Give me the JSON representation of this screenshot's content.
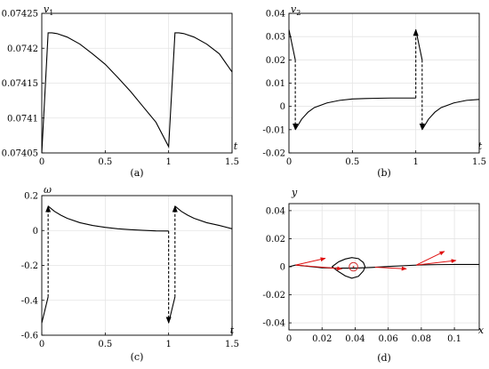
{
  "chart_data": [
    {
      "id": "a",
      "type": "line",
      "caption": "(a)",
      "xlabel": "t",
      "ylabel": "v",
      "ylabel_sub": "1",
      "xlim": [
        0,
        1.5
      ],
      "ylim": [
        0.07405,
        0.07425
      ],
      "xticks": [
        0,
        0.5,
        1,
        1.5
      ],
      "xtick_labels": [
        "0",
        "0.5",
        "1",
        "1.5"
      ],
      "yticks": [
        0.07405,
        0.0741,
        0.07415,
        0.0742,
        0.07425
      ],
      "ytick_labels": [
        "0.07405",
        "0.0741",
        "0.07415",
        "0.0742",
        "0.07425"
      ],
      "grid": true,
      "series": [
        {
          "x": [
            0,
            0.05,
            0.08,
            0.12,
            0.2,
            0.3,
            0.4,
            0.5,
            0.6,
            0.7,
            0.8,
            0.9,
            1.0,
            1.05,
            1.08,
            1.12,
            1.2,
            1.3,
            1.4,
            1.5
          ],
          "y": [
            0.07405,
            0.074222,
            0.074222,
            0.074221,
            0.074216,
            0.074206,
            0.074192,
            0.074177,
            0.074158,
            0.074138,
            0.074116,
            0.074094,
            0.074059,
            0.074222,
            0.074222,
            0.074221,
            0.074216,
            0.074206,
            0.074192,
            0.074166
          ],
          "style": "solid"
        }
      ]
    },
    {
      "id": "b",
      "type": "line",
      "caption": "(b)",
      "xlabel": "t",
      "ylabel": "v",
      "ylabel_sub": "2",
      "xlim": [
        0,
        1.5
      ],
      "ylim": [
        -0.02,
        0.04
      ],
      "xticks": [
        0,
        0.5,
        1,
        1.5
      ],
      "xtick_labels": [
        "0",
        "0.5",
        "1",
        "1.5"
      ],
      "yticks": [
        -0.02,
        -0.01,
        0,
        0.01,
        0.02,
        0.03,
        0.04
      ],
      "ytick_labels": [
        "-0.02",
        "-0.01",
        "0",
        "0.01",
        "0.02",
        "0.03",
        "0.04"
      ],
      "grid": true,
      "series": [
        {
          "x": [
            0,
            0.05
          ],
          "y": [
            0.033,
            0.02
          ],
          "style": "solid"
        },
        {
          "x": [
            0.05,
            0.05
          ],
          "y": [
            0.02,
            -0.01
          ],
          "style": "dashed-arrow"
        },
        {
          "x": [
            0.05,
            0.1,
            0.15,
            0.2,
            0.3,
            0.4,
            0.5,
            0.6,
            0.7,
            0.8,
            0.9,
            1.0
          ],
          "y": [
            -0.01,
            -0.0055,
            -0.0025,
            -0.0005,
            0.0015,
            0.0026,
            0.0032,
            0.0034,
            0.0035,
            0.0036,
            0.0036,
            0.0036
          ],
          "style": "solid"
        },
        {
          "x": [
            1.0,
            1.0
          ],
          "y": [
            0.0036,
            0.033
          ],
          "style": "dashed-arrow"
        },
        {
          "x": [
            1.0,
            1.05
          ],
          "y": [
            0.033,
            0.02
          ],
          "style": "solid"
        },
        {
          "x": [
            1.05,
            1.05
          ],
          "y": [
            0.02,
            -0.01
          ],
          "style": "dashed-arrow"
        },
        {
          "x": [
            1.05,
            1.1,
            1.15,
            1.2,
            1.3,
            1.4,
            1.5
          ],
          "y": [
            -0.01,
            -0.0055,
            -0.0025,
            -0.0005,
            0.0015,
            0.0026,
            0.003
          ],
          "style": "solid"
        }
      ]
    },
    {
      "id": "c",
      "type": "line",
      "caption": "(c)",
      "xlabel": "t",
      "ylabel": "ω",
      "ylabel_sub": "",
      "xlim": [
        0,
        1.5
      ],
      "ylim": [
        -0.6,
        0.2
      ],
      "xticks": [
        0,
        0.5,
        1,
        1.5
      ],
      "xtick_labels": [
        "0",
        "0.5",
        "1",
        "1.5"
      ],
      "yticks": [
        -0.6,
        -0.4,
        -0.2,
        0,
        0.2
      ],
      "ytick_labels": [
        "-0.6",
        "-0.4",
        "-0.2",
        "0",
        "0.2"
      ],
      "grid": true,
      "series": [
        {
          "x": [
            0,
            0.05
          ],
          "y": [
            -0.53,
            -0.38
          ],
          "style": "solid"
        },
        {
          "x": [
            0.05,
            0.05
          ],
          "y": [
            -0.38,
            0.14
          ],
          "style": "dashed-arrow"
        },
        {
          "x": [
            0.05,
            0.1,
            0.15,
            0.2,
            0.3,
            0.4,
            0.5,
            0.6,
            0.7,
            0.8,
            0.9,
            1.0
          ],
          "y": [
            0.14,
            0.11,
            0.088,
            0.07,
            0.045,
            0.029,
            0.018,
            0.01,
            0.005,
            0.001,
            -0.002,
            -0.003
          ],
          "style": "solid"
        },
        {
          "x": [
            1.0,
            1.0
          ],
          "y": [
            -0.003,
            -0.53
          ],
          "style": "dashed-arrow"
        },
        {
          "x": [
            1.0,
            1.05
          ],
          "y": [
            -0.53,
            -0.38
          ],
          "style": "solid"
        },
        {
          "x": [
            1.05,
            1.05
          ],
          "y": [
            -0.38,
            0.14
          ],
          "style": "dashed-arrow"
        },
        {
          "x": [
            1.05,
            1.1,
            1.15,
            1.2,
            1.3,
            1.4,
            1.5
          ],
          "y": [
            0.14,
            0.11,
            0.088,
            0.07,
            0.045,
            0.029,
            0.01
          ],
          "style": "solid"
        }
      ]
    },
    {
      "id": "d",
      "type": "line",
      "caption": "(d)",
      "xlabel": "x",
      "ylabel": "y",
      "ylabel_sub": "",
      "xlim": [
        0,
        0.115
      ],
      "ylim": [
        -0.045,
        0.045
      ],
      "xticks": [
        0,
        0.02,
        0.04,
        0.06,
        0.08,
        0.1
      ],
      "xtick_labels": [
        "0",
        "0.02",
        "0.04",
        "0.06",
        "0.08",
        "0.1"
      ],
      "yticks": [
        -0.04,
        -0.02,
        0,
        0.02,
        0.04
      ],
      "ytick_labels": [
        "-0.04",
        "-0.02",
        "0",
        "0.02",
        "0.04"
      ],
      "grid": true,
      "series": [
        {
          "x": [
            0,
            0.004,
            0.01,
            0.02,
            0.03,
            0.04,
            0.05,
            0.06,
            0.07,
            0.08,
            0.09,
            0.1,
            0.115
          ],
          "y": [
            0,
            0.0012,
            0.0005,
            -0.0008,
            -0.001,
            -0.001,
            -0.0005,
            0.0002,
            0.0008,
            0.0013,
            0.0015,
            0.0016,
            0.0016
          ],
          "style": "solid"
        },
        {
          "x": [
            0.026,
            0.03,
            0.034,
            0.038,
            0.042,
            0.045,
            0.046,
            0.045,
            0.042,
            0.038,
            0.034,
            0.03,
            0.026
          ],
          "y": [
            0,
            0.0035,
            0.0055,
            0.0065,
            0.0058,
            0.003,
            0,
            -0.003,
            -0.0068,
            -0.0082,
            -0.0065,
            -0.0035,
            0
          ],
          "style": "solid"
        }
      ],
      "circle": {
        "x": 0.039,
        "y": 0,
        "r_data": 0.0015,
        "color": "#d32f2f"
      },
      "arrows": [
        {
          "x0": 0.004,
          "y0": 0.0012,
          "x1": 0.022,
          "y1": 0.006
        },
        {
          "x0": 0.004,
          "y0": 0.0012,
          "x1": 0.032,
          "y1": -0.0015
        },
        {
          "x0": 0.052,
          "y0": -0.0003,
          "x1": 0.071,
          "y1": -0.0015
        },
        {
          "x0": 0.077,
          "y0": 0.0012,
          "x1": 0.094,
          "y1": 0.011
        },
        {
          "x0": 0.077,
          "y0": 0.0012,
          "x1": 0.101,
          "y1": 0.0045
        }
      ],
      "arrow_color": "#e01010"
    }
  ]
}
